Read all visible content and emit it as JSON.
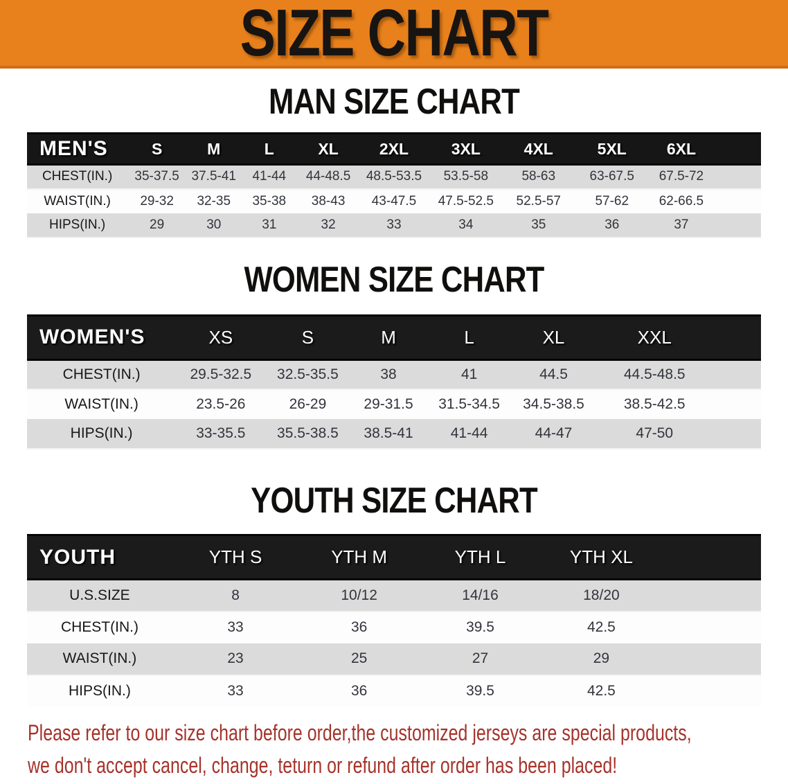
{
  "banner": {
    "title": "SIZE CHART",
    "bg_color": "#e8811c",
    "title_color": "#181412"
  },
  "sections": [
    {
      "heading": "MAN SIZE CHART",
      "table": {
        "header_label": "MEN'S",
        "columns": [
          "S",
          "M",
          "L",
          "XL",
          "2XL",
          "3XL",
          "4XL",
          "5XL",
          "6XL"
        ],
        "rows": [
          {
            "label": "CHEST(IN.)",
            "values": [
              "35-37.5",
              "37.5-41",
              "41-44",
              "44-48.5",
              "48.5-53.5",
              "53.5-58",
              "58-63",
              "63-67.5",
              "67.5-72"
            ]
          },
          {
            "label": "WAIST(IN.)",
            "values": [
              "29-32",
              "32-35",
              "35-38",
              "38-43",
              "43-47.5",
              "47.5-52.5",
              "52.5-57",
              "57-62",
              "62-66.5"
            ]
          },
          {
            "label": "HIPS(IN.)",
            "values": [
              "29",
              "30",
              "31",
              "32",
              "33",
              "34",
              "35",
              "36",
              "37"
            ]
          }
        ]
      }
    },
    {
      "heading": "WOMEN SIZE CHART",
      "table": {
        "header_label": "WOMEN'S",
        "columns": [
          "XS",
          "S",
          "M",
          "L",
          "XL",
          "XXL"
        ],
        "rows": [
          {
            "label": "CHEST(IN.)",
            "values": [
              "29.5-32.5",
              "32.5-35.5",
              "38",
              "41",
              "44.5",
              "44.5-48.5"
            ]
          },
          {
            "label": "WAIST(IN.)",
            "values": [
              "23.5-26",
              "26-29",
              "29-31.5",
              "31.5-34.5",
              "34.5-38.5",
              "38.5-42.5"
            ]
          },
          {
            "label": "HIPS(IN.)",
            "values": [
              "33-35.5",
              "35.5-38.5",
              "38.5-41",
              "41-44",
              "44-47",
              "47-50"
            ]
          }
        ]
      }
    },
    {
      "heading": "YOUTH SIZE CHART",
      "table": {
        "header_label": "YOUTH",
        "columns": [
          "YTH S",
          "YTH M",
          "YTH L",
          "YTH XL"
        ],
        "rows": [
          {
            "label": "U.S.SIZE",
            "values": [
              "8",
              "10/12",
              "14/16",
              "18/20"
            ]
          },
          {
            "label": "CHEST(IN.)",
            "values": [
              "33",
              "36",
              "39.5",
              "42.5"
            ]
          },
          {
            "label": "WAIST(IN.)",
            "values": [
              "23",
              "25",
              "27",
              "29"
            ]
          },
          {
            "label": "HIPS(IN.)",
            "values": [
              "33",
              "36",
              "39.5",
              "42.5"
            ]
          }
        ]
      }
    }
  ],
  "table_style": {
    "header_band_color": "#161616",
    "header_text_color": "#ffffff",
    "shaded_row_color": "#dbdbdb",
    "plain_row_color": "#fdfdfd"
  },
  "disclaimer": {
    "line1": "Please refer to our size chart before order,the customized jerseys are special products,",
    "line2": "we don't accept cancel, change, teturn or refund after order has been placed!",
    "text_color": "#a5332b"
  }
}
